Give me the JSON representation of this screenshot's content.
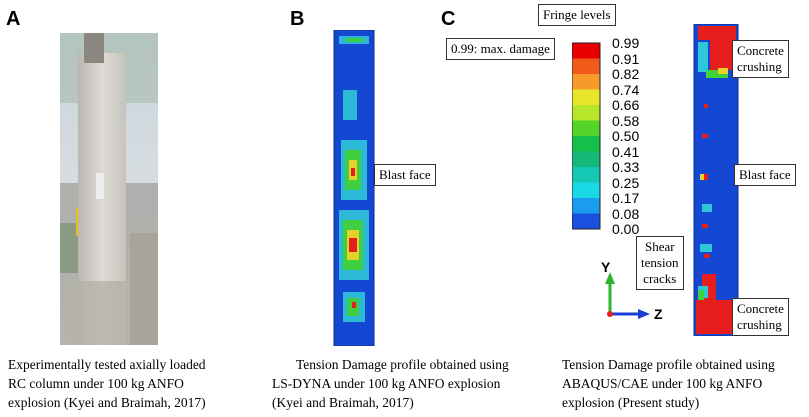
{
  "panels": [
    {
      "letter": "A",
      "caption": [
        "Experimentally tested axially loaded",
        "RC column under 100 kg ANFO",
        "explosion (Kyei and Braimah, 2017)"
      ]
    },
    {
      "letter": "B",
      "label": "Blast face",
      "caption": [
        "Tension Damage profile obtained using",
        "LS-DYNA under 100 kg ANFO explosion",
        "(Kyei and Braimah, 2017)"
      ]
    },
    {
      "letter": "C",
      "caption": [
        "Tension Damage profile obtained using",
        "ABAQUS/CAE under 100 kg ANFO",
        "explosion (Present study)"
      ]
    }
  ],
  "legend": {
    "title": "Fringe levels",
    "max_note": "0.99: max. damage",
    "levels": [
      "0.99",
      "0.91",
      "0.82",
      "0.74",
      "0.66",
      "0.58",
      "0.50",
      "0.41",
      "0.33",
      "0.25",
      "0.17",
      "0.08",
      "0.00"
    ],
    "colors": [
      "#e60000",
      "#f25a1a",
      "#f79a2a",
      "#e9e52a",
      "#b7e52a",
      "#55d42a",
      "#15c04a",
      "#15b878",
      "#14c8b4",
      "#1ad8e6",
      "#1a9cf0",
      "#1a50e0"
    ]
  },
  "annotations": {
    "concrete_top": [
      "Concrete",
      "crushing"
    ],
    "blast_face_c": "Blast face",
    "shear": [
      "Shear",
      "tension",
      "cracks"
    ],
    "concrete_bottom": [
      "Concrete",
      "crushing"
    ]
  },
  "axes": {
    "y": "Y",
    "z": "Z"
  }
}
